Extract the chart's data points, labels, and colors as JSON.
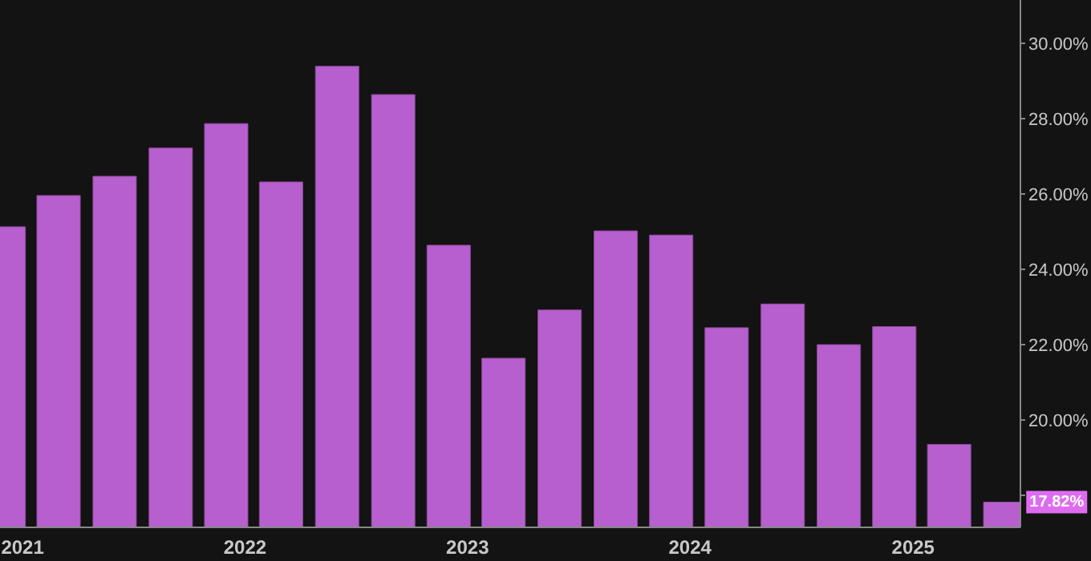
{
  "chart_data": {
    "type": "bar",
    "x": [
      "2020-11-30",
      "2021-02-28",
      "2021-05-31",
      "2021-08-31",
      "2021-11-30",
      "2022-02-28",
      "2022-05-31",
      "2022-08-31",
      "2022-11-30",
      "2023-02-28",
      "2023-05-31",
      "2023-08-31",
      "2023-11-30",
      "2024-02-29",
      "2024-05-31",
      "2024-08-31",
      "2024-11-30",
      "2025-02-28",
      "2025-05-31"
    ],
    "values": [
      25.13,
      25.96,
      26.47,
      27.22,
      27.87,
      26.32,
      29.39,
      28.64,
      24.64,
      21.64,
      22.92,
      25.02,
      24.91,
      22.45,
      23.08,
      22.0,
      22.48,
      19.35,
      17.82
    ],
    "annotations": [
      {
        "text": "17.82%",
        "x": "2025-05-31",
        "y": 17.82
      }
    ],
    "color": "#b85fcf",
    "xlim": [
      "2020-11-25",
      "2025-06-26"
    ],
    "xticks": [
      {
        "value": "2021-01-01",
        "label": "2021"
      },
      {
        "value": "2022-01-01",
        "label": "2022"
      },
      {
        "value": "2023-01-01",
        "label": "2023"
      },
      {
        "value": "2024-01-01",
        "label": "2024"
      },
      {
        "value": "2025-01-01",
        "label": "2025"
      }
    ],
    "ylim": [
      17.15,
      31.15
    ],
    "yticks": [
      {
        "value": 18,
        "label": null
      },
      {
        "value": 20,
        "label": "20.00%"
      },
      {
        "value": 22,
        "label": "22.00%"
      },
      {
        "value": 24,
        "label": "24.00%"
      },
      {
        "value": 26,
        "label": "26.00%"
      },
      {
        "value": 28,
        "label": "28.00%"
      },
      {
        "value": 30,
        "label": "30.00%"
      }
    ],
    "grid": false,
    "legend": false
  }
}
